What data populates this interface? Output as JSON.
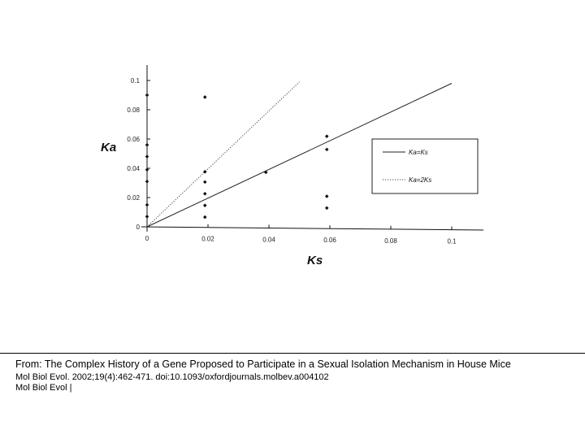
{
  "chart_data": {
    "type": "scatter",
    "xlabel": "Ks",
    "ylabel": "Ka",
    "xlim": [
      0,
      0.11
    ],
    "ylim": [
      0,
      0.1
    ],
    "x_ticks": [
      "0",
      "0.02",
      "0.04",
      "0.06",
      "0.08",
      "0.1"
    ],
    "y_ticks": [
      "0",
      "0.02",
      "0.04",
      "0.06",
      "0.08",
      "0.1"
    ],
    "points": [
      {
        "x": 0,
        "y": 0.09
      },
      {
        "x": 0,
        "y": 0.056
      },
      {
        "x": 0,
        "y": 0.048
      },
      {
        "x": 0,
        "y": 0.039
      },
      {
        "x": 0,
        "y": 0.031
      },
      {
        "x": 0,
        "y": 0.015
      },
      {
        "x": 0,
        "y": 0.007
      },
      {
        "x": 0.019,
        "y": 0.089
      },
      {
        "x": 0.019,
        "y": 0.038
      },
      {
        "x": 0.019,
        "y": 0.031
      },
      {
        "x": 0.019,
        "y": 0.023
      },
      {
        "x": 0.019,
        "y": 0.015
      },
      {
        "x": 0.019,
        "y": 0.007
      },
      {
        "x": 0.039,
        "y": 0.038
      },
      {
        "x": 0.059,
        "y": 0.063
      },
      {
        "x": 0.059,
        "y": 0.054
      },
      {
        "x": 0.059,
        "y": 0.022
      },
      {
        "x": 0.059,
        "y": 0.014
      }
    ],
    "reference_lines": [
      {
        "name": "Ka=Ks",
        "slope": 1,
        "x_range": [
          0,
          0.1
        ],
        "style": "solid"
      },
      {
        "name": "Ka=2Ks",
        "slope": 2,
        "x_range": [
          0,
          0.05
        ],
        "style": "dotted"
      }
    ],
    "legend": {
      "placement": "right",
      "entries": [
        "Ka=Ks",
        "Ka=2Ks"
      ]
    },
    "grid": false
  },
  "caption": {
    "title": "From: The Complex History of a Gene Proposed to Participate in a Sexual Isolation Mechanism in House Mice",
    "citation": "Mol Biol Evol. 2002;19(4):462-471. doi:10.1093/oxfordjournals.molbev.a004102",
    "journal": "Mol Biol Evol |"
  }
}
